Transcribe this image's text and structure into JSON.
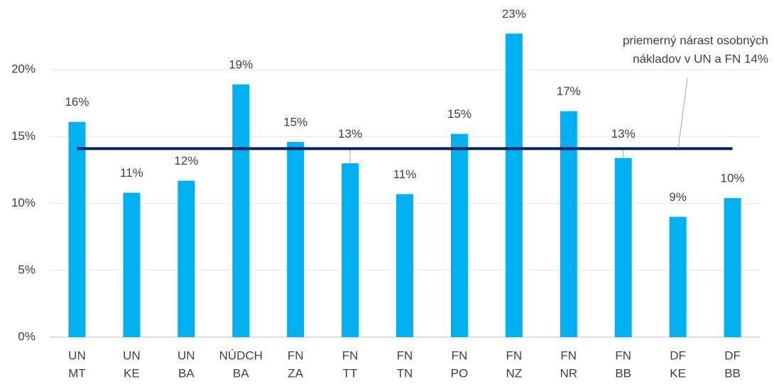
{
  "chart_data": {
    "type": "bar",
    "categories": [
      [
        "UN",
        "MT"
      ],
      [
        "UN",
        "KE"
      ],
      [
        "UN",
        "BA"
      ],
      [
        "NÚDCH",
        "BA"
      ],
      [
        "FN",
        "ZA"
      ],
      [
        "FN",
        "TT"
      ],
      [
        "FN",
        "TN"
      ],
      [
        "FN",
        "PO"
      ],
      [
        "FN",
        "NZ"
      ],
      [
        "FN",
        "NR"
      ],
      [
        "FN",
        "BB"
      ],
      [
        "DF",
        "KE"
      ],
      [
        "DF",
        "BB"
      ]
    ],
    "values": [
      16.1,
      10.8,
      11.7,
      18.9,
      14.6,
      13.0,
      10.7,
      15.2,
      22.7,
      16.9,
      13.4,
      9.0,
      10.4
    ],
    "value_labels": [
      "16%",
      "11%",
      "12%",
      "19%",
      "15%",
      "13%",
      "11%",
      "15%",
      "23%",
      "17%",
      "13%",
      "9%",
      "10%"
    ],
    "color": "#00b0f0",
    "ylim": [
      0,
      25
    ],
    "yticks": [
      {
        "value": 0,
        "label": "0%"
      },
      {
        "value": 5,
        "label": "5%"
      },
      {
        "value": 10,
        "label": "10%"
      },
      {
        "value": 15,
        "label": "15%"
      },
      {
        "value": 20,
        "label": "20%"
      }
    ],
    "grid": true,
    "reference_line": {
      "value": 14.1,
      "color": "#002060",
      "label": [
        "priemerný nárast osobných",
        "nákladov v UN a FN 14%"
      ]
    }
  }
}
